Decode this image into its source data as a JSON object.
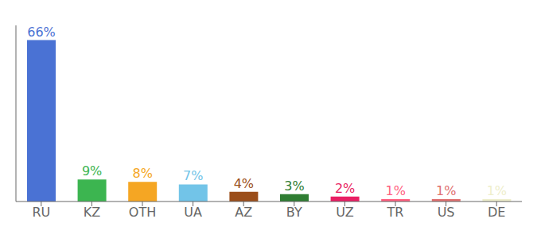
{
  "chart_data": {
    "type": "bar",
    "categories": [
      "RU",
      "KZ",
      "OTH",
      "UA",
      "AZ",
      "BY",
      "UZ",
      "TR",
      "US",
      "DE"
    ],
    "values": [
      66,
      9,
      8,
      7,
      4,
      3,
      2,
      1,
      1,
      1
    ],
    "value_labels": [
      "66%",
      "9%",
      "8%",
      "7%",
      "4%",
      "3%",
      "2%",
      "1%",
      "1%",
      "1%"
    ],
    "colors": [
      "#4A72D4",
      "#3CB550",
      "#F5A623",
      "#72C4E8",
      "#9B4E1A",
      "#2E7D32",
      "#E91E63",
      "#FF6080",
      "#E07070",
      "#EEEECC"
    ],
    "ylim": [
      0,
      72
    ],
    "data_labels": true,
    "tick_labels": "x",
    "grid": false
  }
}
